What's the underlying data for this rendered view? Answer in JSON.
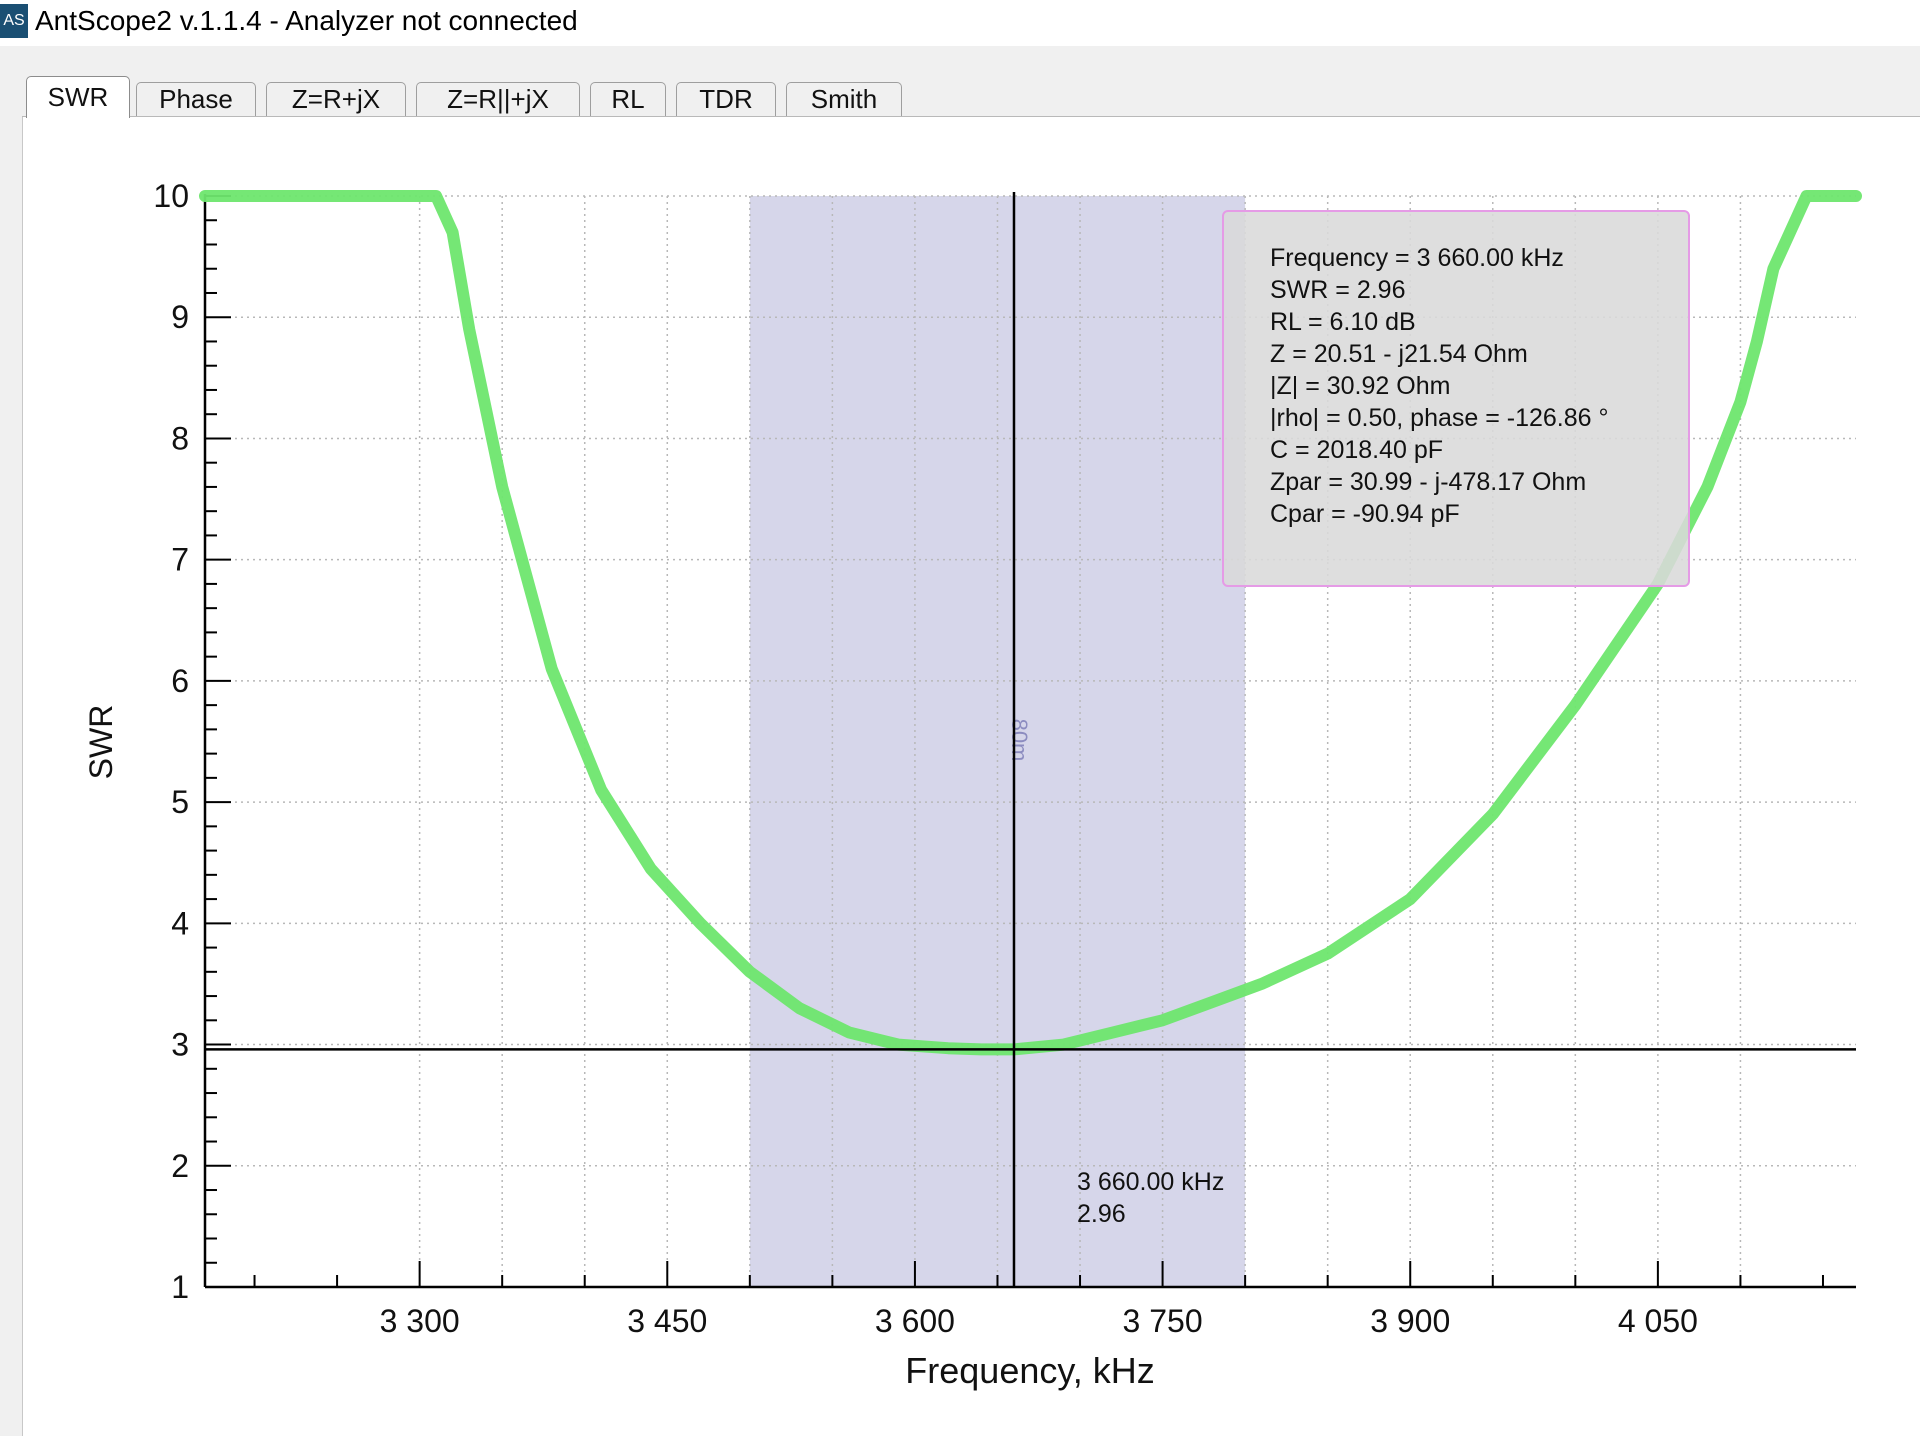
{
  "window": {
    "icon_text": "AS",
    "title": "AntScope2 v.1.1.4 - Analyzer not connected"
  },
  "tabs": [
    {
      "label": "SWR",
      "active": true
    },
    {
      "label": "Phase",
      "active": false
    },
    {
      "label": "Z=R+jX",
      "active": false
    },
    {
      "label": "Z=R||+jX",
      "active": false
    },
    {
      "label": "RL",
      "active": false
    },
    {
      "label": "TDR",
      "active": false
    },
    {
      "label": "Smith",
      "active": false
    }
  ],
  "chart_data": {
    "type": "line",
    "xlabel": "Frequency, kHz",
    "ylabel": "SWR",
    "xlim": [
      3170,
      4170
    ],
    "ylim": [
      1,
      10
    ],
    "x_ticks": [
      {
        "value": 3300,
        "label": "3 300"
      },
      {
        "value": 3450,
        "label": "3 450"
      },
      {
        "value": 3600,
        "label": "3 600"
      },
      {
        "value": 3750,
        "label": "3 750"
      },
      {
        "value": 3900,
        "label": "3 900"
      },
      {
        "value": 4050,
        "label": "4 050"
      }
    ],
    "y_ticks": [
      1,
      2,
      3,
      4,
      5,
      6,
      7,
      8,
      9,
      10
    ],
    "grid": true,
    "line_color": "#6ee66e",
    "band": {
      "label": "80m",
      "from": 3500,
      "to": 3800,
      "color": "#d6d6ea"
    },
    "cursor": {
      "x": 3660,
      "y": 2.96
    },
    "series": [
      {
        "x": [
          3170,
          3220,
          3270,
          3310,
          3320,
          3330,
          3350,
          3380,
          3410,
          3440,
          3470,
          3500,
          3530,
          3560,
          3590,
          3620,
          3640,
          3660,
          3690,
          3720,
          3750,
          3780,
          3810,
          3850,
          3900,
          3950,
          4000,
          4050,
          4080,
          4100,
          4110,
          4120,
          4140,
          4170
        ],
        "y": [
          10,
          10,
          10,
          10,
          9.7,
          8.9,
          7.6,
          6.1,
          5.1,
          4.45,
          4.0,
          3.6,
          3.3,
          3.1,
          3.0,
          2.97,
          2.96,
          2.96,
          3.0,
          3.1,
          3.2,
          3.35,
          3.5,
          3.75,
          4.2,
          4.9,
          5.8,
          6.8,
          7.6,
          8.3,
          8.8,
          9.4,
          10,
          10
        ]
      }
    ]
  },
  "marker_info": {
    "lines": [
      "Frequency = 3 660.00 kHz",
      "SWR = 2.96",
      "RL = 6.10 dB",
      "Z = 20.51 - j21.54 Ohm",
      "|Z| = 30.92 Ohm",
      "|rho| = 0.50, phase = -126.86 °",
      "C = 2018.40 pF",
      "Zpar = 30.99 - j-478.17 Ohm",
      "Cpar = -90.94 pF"
    ]
  },
  "cursor_label": {
    "frequency": "3 660.00 kHz",
    "value": "2.96"
  }
}
